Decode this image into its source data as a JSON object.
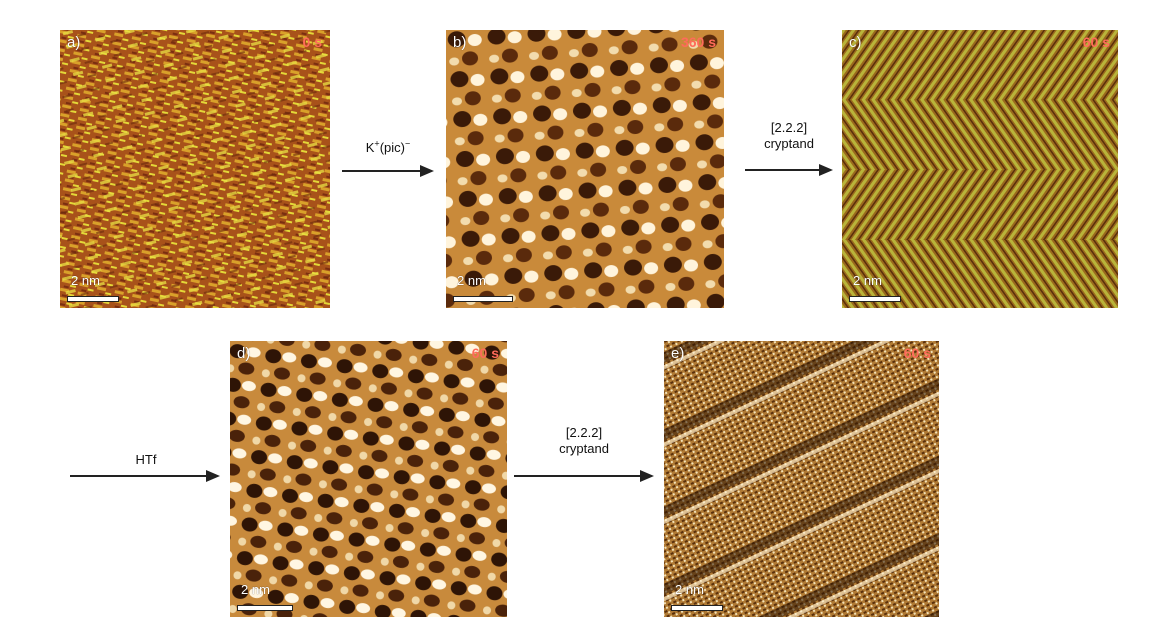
{
  "colors": {
    "label_time": "#ff6b5a",
    "label_letter": "#ffffff",
    "arrow": "#222222"
  },
  "panels": [
    {
      "id": "a",
      "letter": "a)",
      "time": "0 s",
      "scale": "2 nm",
      "texture": "dense-orange-yellow"
    },
    {
      "id": "b",
      "letter": "b)",
      "time": "360 s",
      "scale": "2 nm",
      "texture": "lattice-dark-light"
    },
    {
      "id": "c",
      "letter": "c)",
      "time": "60 s",
      "scale": "2 nm",
      "texture": "herringbone-green"
    },
    {
      "id": "d",
      "letter": "d)",
      "time": "60 s",
      "scale": "2 nm",
      "texture": "lattice-dark-light"
    },
    {
      "id": "e",
      "letter": "e)",
      "time": "60 s",
      "scale": "2 nm",
      "texture": "diagonal-rows-noisy"
    }
  ],
  "arrows": {
    "ab": {
      "label_main": "K",
      "label_sup1": "+",
      "label_mid": "(pic)",
      "label_sup2": "−"
    },
    "bc": {
      "line1": "[2.2.2]",
      "line2": "cryptand"
    },
    "in_d": {
      "line1": "HTf"
    },
    "de": {
      "line1": "[2.2.2]",
      "line2": "cryptand"
    }
  }
}
